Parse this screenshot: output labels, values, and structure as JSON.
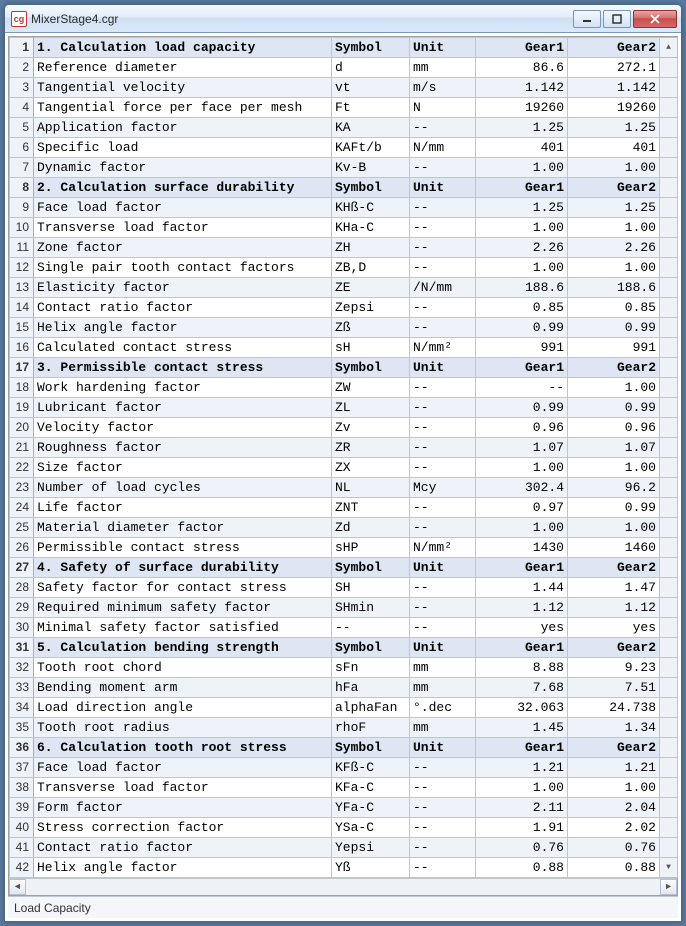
{
  "window": {
    "title": "MixerStage4.cgr",
    "icon_label": "cg"
  },
  "status": {
    "text": "Load Capacity"
  },
  "columns": {
    "desc": "",
    "symbol": "Symbol",
    "unit": "Unit",
    "gear1": "Gear1",
    "gear2": "Gear2"
  },
  "rows": [
    {
      "n": "1",
      "section": true,
      "desc": "1. Calculation load capacity",
      "sym": "Symbol",
      "unit": "Unit",
      "g1": "Gear1",
      "g2": "Gear2"
    },
    {
      "n": "2",
      "desc": "Reference diameter",
      "sym": "d",
      "unit": "mm",
      "g1": "86.6",
      "g2": "272.1"
    },
    {
      "n": "3",
      "desc": "Tangential velocity",
      "sym": "vt",
      "unit": "m/s",
      "g1": "1.142",
      "g2": "1.142"
    },
    {
      "n": "4",
      "desc": "Tangential force per face per mesh",
      "sym": "Ft",
      "unit": "N",
      "g1": "19260",
      "g2": "19260"
    },
    {
      "n": "5",
      "desc": "Application factor",
      "sym": "KA",
      "unit": "--",
      "g1": "1.25",
      "g2": "1.25"
    },
    {
      "n": "6",
      "desc": "Specific load",
      "sym": "KAFt/b",
      "unit": "N/mm",
      "g1": "401",
      "g2": "401"
    },
    {
      "n": "7",
      "desc": "Dynamic factor",
      "sym": "Kv-B",
      "unit": "--",
      "g1": "1.00",
      "g2": "1.00"
    },
    {
      "n": "8",
      "section": true,
      "desc": "2. Calculation surface durability",
      "sym": "Symbol",
      "unit": "Unit",
      "g1": "Gear1",
      "g2": "Gear2"
    },
    {
      "n": "9",
      "desc": "Face load factor",
      "sym": "KHß-C",
      "unit": "--",
      "g1": "1.25",
      "g2": "1.25"
    },
    {
      "n": "10",
      "desc": "Transverse load factor",
      "sym": "KHa-C",
      "unit": "--",
      "g1": "1.00",
      "g2": "1.00"
    },
    {
      "n": "11",
      "desc": "Zone factor",
      "sym": "ZH",
      "unit": "--",
      "g1": "2.26",
      "g2": "2.26"
    },
    {
      "n": "12",
      "desc": "Single pair tooth contact factors",
      "sym": "ZB,D",
      "unit": "--",
      "g1": "1.00",
      "g2": "1.00"
    },
    {
      "n": "13",
      "desc": "Elasticity factor",
      "sym": "ZE",
      "unit": "/N/mm",
      "g1": "188.6",
      "g2": "188.6"
    },
    {
      "n": "14",
      "desc": "Contact ratio factor",
      "sym": "Zepsi",
      "unit": "--",
      "g1": "0.85",
      "g2": "0.85"
    },
    {
      "n": "15",
      "desc": "Helix angle factor",
      "sym": "Zß",
      "unit": "--",
      "g1": "0.99",
      "g2": "0.99"
    },
    {
      "n": "16",
      "desc": "Calculated contact stress",
      "sym": "sH",
      "unit": "N/mm²",
      "g1": "991",
      "g2": "991"
    },
    {
      "n": "17",
      "section": true,
      "desc": "3. Permissible contact stress",
      "sym": "Symbol",
      "unit": "Unit",
      "g1": "Gear1",
      "g2": "Gear2"
    },
    {
      "n": "18",
      "desc": "Work hardening factor",
      "sym": "ZW",
      "unit": "--",
      "g1": "--",
      "g2": "1.00"
    },
    {
      "n": "19",
      "desc": "Lubricant factor",
      "sym": "ZL",
      "unit": "--",
      "g1": "0.99",
      "g2": "0.99"
    },
    {
      "n": "20",
      "desc": "Velocity factor",
      "sym": "Zv",
      "unit": "--",
      "g1": "0.96",
      "g2": "0.96"
    },
    {
      "n": "21",
      "desc": "Roughness factor",
      "sym": "ZR",
      "unit": "--",
      "g1": "1.07",
      "g2": "1.07"
    },
    {
      "n": "22",
      "desc": "Size factor",
      "sym": "ZX",
      "unit": "--",
      "g1": "1.00",
      "g2": "1.00"
    },
    {
      "n": "23",
      "desc": "Number of load cycles",
      "sym": "NL",
      "unit": "Mcy",
      "g1": "302.4",
      "g2": "96.2"
    },
    {
      "n": "24",
      "desc": "Life factor",
      "sym": "ZNT",
      "unit": "--",
      "g1": "0.97",
      "g2": "0.99"
    },
    {
      "n": "25",
      "desc": "Material diameter factor",
      "sym": "Zd",
      "unit": "--",
      "g1": "1.00",
      "g2": "1.00"
    },
    {
      "n": "26",
      "desc": "Permissible contact stress",
      "sym": "sHP",
      "unit": "N/mm²",
      "g1": "1430",
      "g2": "1460"
    },
    {
      "n": "27",
      "section": true,
      "desc": "4. Safety of surface durability",
      "sym": "Symbol",
      "unit": "Unit",
      "g1": "Gear1",
      "g2": "Gear2"
    },
    {
      "n": "28",
      "desc": "Safety factor for contact stress",
      "sym": "SH",
      "unit": "--",
      "g1": "1.44",
      "g2": "1.47"
    },
    {
      "n": "29",
      "desc": "Required minimum safety factor",
      "sym": "SHmin",
      "unit": "--",
      "g1": "1.12",
      "g2": "1.12"
    },
    {
      "n": "30",
      "desc": "Minimal safety factor satisfied",
      "sym": "--",
      "unit": "--",
      "g1": "yes",
      "g2": "yes"
    },
    {
      "n": "31",
      "section": true,
      "desc": "5. Calculation bending strength",
      "sym": "Symbol",
      "unit": "Unit",
      "g1": "Gear1",
      "g2": "Gear2"
    },
    {
      "n": "32",
      "desc": "Tooth root chord",
      "sym": "sFn",
      "unit": "mm",
      "g1": "8.88",
      "g2": "9.23"
    },
    {
      "n": "33",
      "desc": "Bending moment arm",
      "sym": "hFa",
      "unit": "mm",
      "g1": "7.68",
      "g2": "7.51"
    },
    {
      "n": "34",
      "desc": "Load direction angle",
      "sym": "alphaFan",
      "unit": "°.dec",
      "g1": "32.063",
      "g2": "24.738"
    },
    {
      "n": "35",
      "desc": "Tooth root radius",
      "sym": "rhoF",
      "unit": "mm",
      "g1": "1.45",
      "g2": "1.34"
    },
    {
      "n": "36",
      "section": true,
      "desc": "6. Calculation tooth root stress",
      "sym": "Symbol",
      "unit": "Unit",
      "g1": "Gear1",
      "g2": "Gear2"
    },
    {
      "n": "37",
      "desc": "Face load factor",
      "sym": "KFß-C",
      "unit": "--",
      "g1": "1.21",
      "g2": "1.21"
    },
    {
      "n": "38",
      "desc": "Transverse load factor",
      "sym": "KFa-C",
      "unit": "--",
      "g1": "1.00",
      "g2": "1.00"
    },
    {
      "n": "39",
      "desc": "Form factor",
      "sym": "YFa-C",
      "unit": "--",
      "g1": "2.11",
      "g2": "2.04"
    },
    {
      "n": "40",
      "desc": "Stress correction factor",
      "sym": "YSa-C",
      "unit": "--",
      "g1": "1.91",
      "g2": "2.02"
    },
    {
      "n": "41",
      "desc": "Contact ratio factor",
      "sym": "Yepsi",
      "unit": "--",
      "g1": "0.76",
      "g2": "0.76"
    },
    {
      "n": "42",
      "desc": "Helix angle factor",
      "sym": "Yß",
      "unit": "--",
      "g1": "0.88",
      "g2": "0.88"
    }
  ]
}
